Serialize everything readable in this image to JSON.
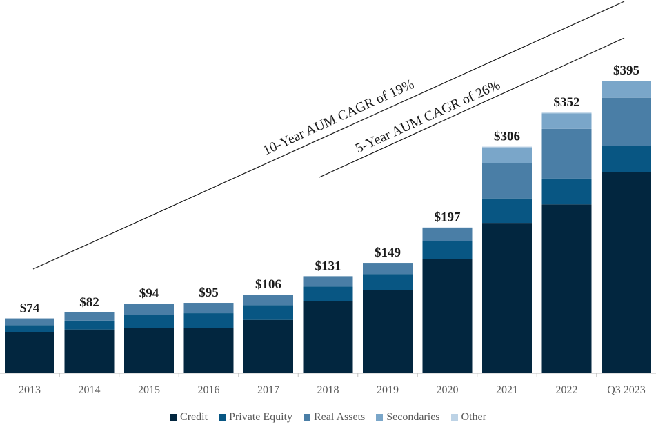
{
  "chart_data": {
    "type": "bar",
    "stacked": true,
    "categories": [
      "2013",
      "2014",
      "2015",
      "2016",
      "2017",
      "2018",
      "2019",
      "2020",
      "2021",
      "2022",
      "Q3 2023"
    ],
    "totals": [
      "$74",
      "$82",
      "$94",
      "$95",
      "$106",
      "$131",
      "$149",
      "$197",
      "$306",
      "$352",
      "$395"
    ],
    "series": [
      {
        "name": "Credit",
        "color": "#02263f",
        "values": [
          55,
          59,
          61,
          61,
          72,
          97,
          112,
          154,
          203,
          228,
          272
        ]
      },
      {
        "name": "Private Equity",
        "color": "#085683",
        "values": [
          10,
          12,
          18,
          20,
          20,
          20,
          22,
          24,
          33,
          35,
          35
        ]
      },
      {
        "name": "Real Assets",
        "color": "#4a7ea6",
        "values": [
          9,
          11,
          15,
          14,
          14,
          14,
          15,
          18,
          48,
          67,
          65
        ]
      },
      {
        "name": "Secondaries",
        "color": "#7aa6c9",
        "values": [
          0,
          0,
          0,
          0,
          0,
          0,
          0,
          0,
          21,
          21,
          23
        ]
      },
      {
        "name": "Other",
        "color": "#bdd3e6",
        "values": [
          0,
          0,
          0,
          0,
          0,
          0,
          0,
          1,
          1,
          1,
          0
        ]
      }
    ],
    "annotations": [
      "10-Year AUM CAGR of 19%",
      "5-Year AUM CAGR of 26%"
    ],
    "ylim": [
      0,
      395
    ],
    "grid": false,
    "legend_position": "bottom"
  }
}
